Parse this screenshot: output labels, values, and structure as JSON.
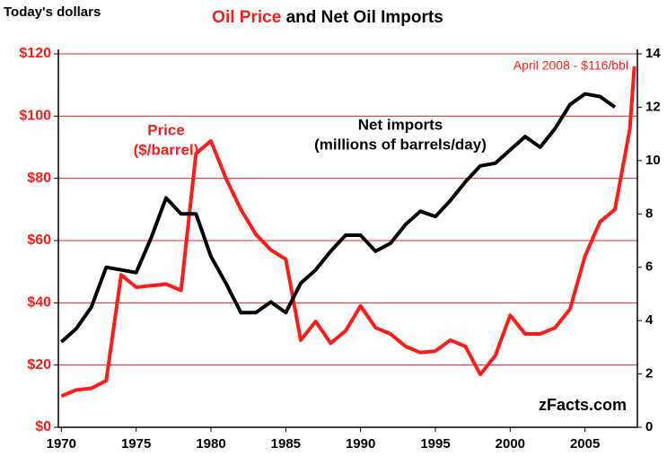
{
  "chart_data": {
    "type": "line",
    "title": {
      "highlight": "Oil Price",
      "rest": "and Net Oil Imports"
    },
    "y_label": "Today's dollars",
    "xlim": [
      1969.8,
      2008.5
    ],
    "xticks": [
      1970,
      1975,
      1980,
      1985,
      1990,
      1995,
      2000,
      2005
    ],
    "ylim": [
      0,
      120
    ],
    "yticks": [
      {
        "value": 0,
        "label": "$0"
      },
      {
        "value": 20,
        "label": "$20"
      },
      {
        "value": 40,
        "label": "$40"
      },
      {
        "value": 60,
        "label": "$60"
      },
      {
        "value": 80,
        "label": "$80"
      },
      {
        "value": 100,
        "label": "$100"
      },
      {
        "value": 120,
        "label": "$120"
      }
    ],
    "y2lim": [
      0,
      14
    ],
    "y2ticks": [
      0,
      2,
      4,
      6,
      8,
      10,
      12,
      14
    ],
    "grid": true,
    "grid_color": "#e8232a",
    "series": [
      {
        "name": [
          "Price",
          "($/barrel)"
        ],
        "color": "#ff1a1a",
        "x": [
          1970,
          1971,
          1972,
          1973,
          1974,
          1975,
          1976,
          1977,
          1978,
          1979,
          1980,
          1981,
          1982,
          1983,
          1984,
          1985,
          1986,
          1987,
          1988,
          1989,
          1990,
          1991,
          1992,
          1993,
          1994,
          1995,
          1996,
          1997,
          1998,
          1999,
          2000,
          2001,
          2002,
          2003,
          2004,
          2005,
          2006,
          2007,
          2008,
          2008.3
        ],
        "values": [
          10,
          12,
          12.5,
          15,
          49,
          45,
          45.5,
          46,
          44,
          88,
          92,
          80,
          70,
          62,
          57,
          54,
          28,
          34,
          27,
          31,
          39,
          32,
          30,
          26,
          24,
          24.5,
          28,
          26,
          17,
          23,
          36,
          30,
          30,
          32,
          38,
          55,
          66,
          70,
          96,
          116
        ]
      },
      {
        "name": [
          "Net imports",
          "(millions of barrels/day)"
        ],
        "color": "#000000",
        "axis": "y2",
        "x": [
          1970,
          1971,
          1972,
          1973,
          1974,
          1975,
          1976,
          1977,
          1978,
          1979,
          1980,
          1981,
          1982,
          1983,
          1984,
          1985,
          1986,
          1987,
          1988,
          1989,
          1990,
          1991,
          1992,
          1993,
          1994,
          1995,
          1996,
          1997,
          1998,
          1999,
          2000,
          2001,
          2002,
          2003,
          2004,
          2005,
          2006,
          2007
        ],
        "values": [
          3.2,
          3.7,
          4.5,
          6.0,
          5.9,
          5.8,
          7.1,
          8.6,
          8.0,
          8.0,
          6.4,
          5.4,
          4.3,
          4.3,
          4.7,
          4.3,
          5.4,
          5.9,
          6.6,
          7.2,
          7.2,
          6.6,
          6.9,
          7.6,
          8.1,
          7.9,
          8.5,
          9.2,
          9.8,
          9.9,
          10.4,
          10.9,
          10.5,
          11.2,
          12.1,
          12.5,
          12.4,
          12.0
        ]
      }
    ],
    "annotations": [
      "April 2008 - $116/bbl",
      "zFacts.com"
    ]
  }
}
